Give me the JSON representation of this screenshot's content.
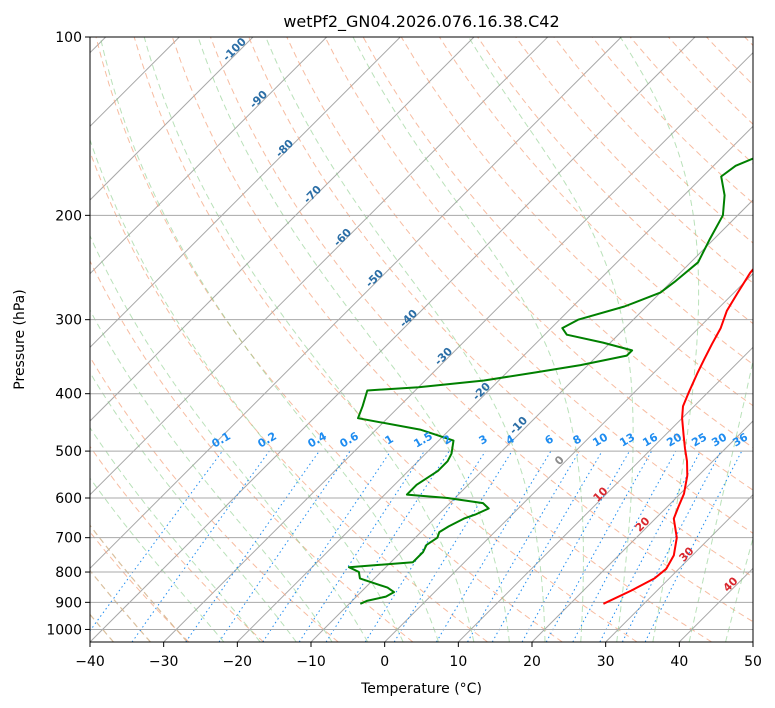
{
  "chart_data": {
    "type": "line",
    "title": "wetPf2_GN04.2026.076.16.38.C42",
    "xlabel": "Temperature (°C)",
    "ylabel": "Pressure (hPa)",
    "xlim": [
      -40,
      50
    ],
    "ylim": [
      1050,
      100
    ],
    "x_ticks": [
      "−40",
      "−30",
      "−20",
      "−10",
      "0",
      "10",
      "20",
      "30",
      "40",
      "50"
    ],
    "y_ticks": [
      "100",
      "200",
      "300",
      "400",
      "500",
      "600",
      "700",
      "800",
      "900",
      "1000"
    ],
    "grid": true,
    "series": [
      {
        "name": "Temperature",
        "color": "#ff0000",
        "points": [
          [
            24.5,
            905
          ],
          [
            26.5,
            860
          ],
          [
            28.0,
            820
          ],
          [
            28.3,
            790
          ],
          [
            27.5,
            750
          ],
          [
            25.5,
            700
          ],
          [
            22.5,
            650
          ],
          [
            21.5,
            620
          ],
          [
            20.5,
            590
          ],
          [
            18.5,
            550
          ],
          [
            16.5,
            520
          ],
          [
            14.5,
            495
          ],
          [
            12.5,
            470
          ],
          [
            10.0,
            440
          ],
          [
            8.5,
            420
          ],
          [
            7.5,
            400
          ],
          [
            6.0,
            370
          ],
          [
            5.0,
            350
          ],
          [
            4.0,
            330
          ],
          [
            3.0,
            310
          ],
          [
            1.5,
            290
          ],
          [
            0.5,
            270
          ],
          [
            -0.5,
            250
          ],
          [
            -1.0,
            230
          ],
          [
            -0.8,
            210
          ],
          [
            0.5,
            198
          ],
          [
            2.5,
            188
          ],
          [
            5.5,
            175
          ],
          [
            7.5,
            165
          ],
          [
            9.0,
            155
          ],
          [
            9.0,
            145
          ],
          [
            9.0,
            130
          ],
          [
            8.5,
            120
          ],
          [
            8.3,
            110
          ],
          [
            8.5,
            100
          ]
        ]
      },
      {
        "name": "Dewpoint",
        "color": "#008000",
        "points": [
          [
            -8.5,
            905
          ],
          [
            -8.0,
            895
          ],
          [
            -6.0,
            880
          ],
          [
            -5.5,
            865
          ],
          [
            -7.0,
            850
          ],
          [
            -12.0,
            820
          ],
          [
            -13.0,
            800
          ],
          [
            -15.0,
            785
          ],
          [
            -7.0,
            770
          ],
          [
            -7.0,
            740
          ],
          [
            -7.5,
            720
          ],
          [
            -7.0,
            700
          ],
          [
            -7.5,
            685
          ],
          [
            -7.0,
            670
          ],
          [
            -6.0,
            650
          ],
          [
            -5.0,
            640
          ],
          [
            -4.0,
            625
          ],
          [
            -5.5,
            612
          ],
          [
            -11.0,
            600
          ],
          [
            -17.0,
            592
          ],
          [
            -17.0,
            570
          ],
          [
            -16.0,
            540
          ],
          [
            -16.0,
            520
          ],
          [
            -16.5,
            505
          ],
          [
            -18.0,
            480
          ],
          [
            -24.0,
            460
          ],
          [
            -34.0,
            440
          ],
          [
            -35.0,
            420
          ],
          [
            -36.5,
            395
          ],
          [
            -30.0,
            390
          ],
          [
            -22.0,
            380
          ],
          [
            -16.0,
            368
          ],
          [
            -11.0,
            358
          ],
          [
            -6.0,
            345
          ],
          [
            -6.0,
            338
          ],
          [
            -11.0,
            328
          ],
          [
            -17.0,
            318
          ],
          [
            -18.5,
            310
          ],
          [
            -17.5,
            300
          ],
          [
            -13.0,
            285
          ],
          [
            -10.0,
            270
          ],
          [
            -9.5,
            258
          ],
          [
            -9.0,
            240
          ],
          [
            -10.5,
            220
          ],
          [
            -12.0,
            200
          ],
          [
            -14.5,
            185
          ],
          [
            -17.5,
            172
          ],
          [
            -17.0,
            165
          ],
          [
            -15.5,
            160
          ],
          [
            -13.0,
            148
          ],
          [
            -12.0,
            138
          ],
          [
            -11.0,
            125
          ],
          [
            -9.5,
            115
          ],
          [
            -7.5,
            100
          ]
        ]
      }
    ],
    "dry_adiabat_labels": [
      "-100",
      "-90",
      "-80",
      "-70",
      "-60",
      "-50",
      "-40",
      "-30",
      "-20",
      "-10",
      "0"
    ],
    "moist_adiabat_labels": [
      "0",
      "10",
      "20",
      "30",
      "40"
    ],
    "mixing_ratio_labels": [
      "0.1",
      "0.2",
      "0.4",
      "0.6",
      "1",
      "1.5",
      "2",
      "3",
      "4",
      "6",
      "8",
      "10",
      "13",
      "16",
      "20",
      "25",
      "30",
      "36"
    ]
  }
}
